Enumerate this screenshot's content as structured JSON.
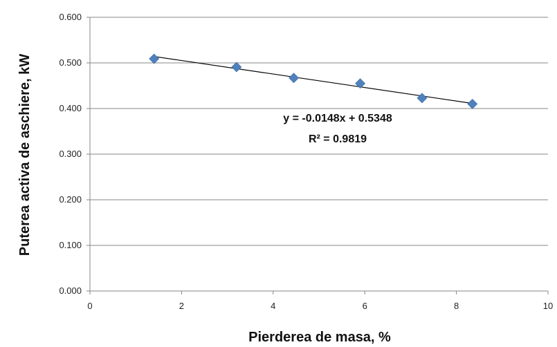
{
  "chart_data": {
    "type": "scatter",
    "x": [
      1.4,
      3.2,
      4.45,
      5.9,
      7.25,
      8.35
    ],
    "y": [
      0.509,
      0.491,
      0.467,
      0.455,
      0.423,
      0.41
    ],
    "trendline": {
      "slope": -0.0148,
      "intercept": 0.5348,
      "x_range": [
        1.4,
        8.35
      ]
    },
    "equation_text": "y = -0.0148x + 0.5348",
    "r2_text": "R² = 0.9819",
    "xlabel": "Pierderea de masa, %",
    "ylabel": "Puterea activa de aschiere, kW",
    "xlim": [
      0,
      10
    ],
    "ylim": [
      0,
      0.6
    ],
    "x_ticks": [
      0,
      2,
      4,
      6,
      8,
      10
    ],
    "y_ticks": [
      0,
      0.1,
      0.2,
      0.3,
      0.4,
      0.5,
      0.6
    ],
    "x_tick_labels": [
      "0",
      "2",
      "4",
      "6",
      "8",
      "10"
    ],
    "y_tick_labels": [
      "0.000",
      "0.100",
      "0.200",
      "0.300",
      "0.400",
      "0.500",
      "0.600"
    ],
    "grid": "horizontal",
    "marker_color": "#4f81bd",
    "trendline_color": "#000000",
    "gridline_color": "#868686"
  }
}
